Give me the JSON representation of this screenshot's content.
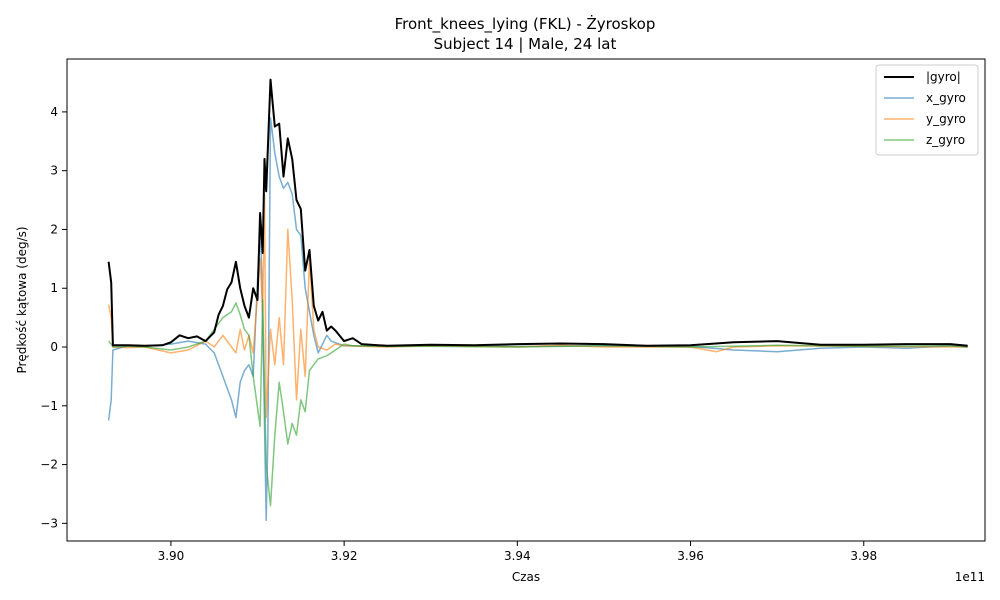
{
  "chart_data": {
    "type": "line",
    "title": "Front_knees_lying (FKL) - Żyroskop",
    "subtitle": "Subject 14 | Male, 24 lat",
    "xlabel": "Czas",
    "ylabel": "Prędkość kątowa (deg/s)",
    "x_offset_label": "1e11",
    "xlim": [
      3.888,
      3.994
    ],
    "ylim": [
      -3.3,
      4.9
    ],
    "x_ticks": [
      3.9,
      3.92,
      3.94,
      3.96,
      3.98
    ],
    "x_tick_labels": [
      "3.90",
      "3.92",
      "3.94",
      "3.96",
      "3.98"
    ],
    "y_ticks": [
      -3,
      -2,
      -1,
      0,
      1,
      2,
      3,
      4
    ],
    "y_tick_labels": [
      "−3",
      "−2",
      "−1",
      "0",
      "1",
      "2",
      "3",
      "4"
    ],
    "grid": false,
    "legend_position": "top-right",
    "series": [
      {
        "name": "|gyro|",
        "color": "#000000",
        "points": [
          [
            3.8928,
            1.45
          ],
          [
            3.8931,
            1.1
          ],
          [
            3.8933,
            0.03
          ],
          [
            3.895,
            0.03
          ],
          [
            3.897,
            0.02
          ],
          [
            3.899,
            0.03
          ],
          [
            3.9,
            0.08
          ],
          [
            3.901,
            0.2
          ],
          [
            3.902,
            0.15
          ],
          [
            3.903,
            0.18
          ],
          [
            3.904,
            0.1
          ],
          [
            3.905,
            0.25
          ],
          [
            3.9055,
            0.55
          ],
          [
            3.906,
            0.7
          ],
          [
            3.9065,
            0.98
          ],
          [
            3.907,
            1.1
          ],
          [
            3.9075,
            1.45
          ],
          [
            3.908,
            1.0
          ],
          [
            3.9085,
            0.7
          ],
          [
            3.909,
            0.5
          ],
          [
            3.9095,
            1.0
          ],
          [
            3.91,
            0.8
          ],
          [
            3.9103,
            2.28
          ],
          [
            3.9106,
            1.6
          ],
          [
            3.9108,
            3.2
          ],
          [
            3.911,
            2.65
          ],
          [
            3.9115,
            4.55
          ],
          [
            3.912,
            3.75
          ],
          [
            3.9125,
            3.8
          ],
          [
            3.913,
            2.9
          ],
          [
            3.9135,
            3.55
          ],
          [
            3.914,
            3.2
          ],
          [
            3.9145,
            2.5
          ],
          [
            3.915,
            2.35
          ],
          [
            3.9155,
            1.3
          ],
          [
            3.916,
            1.65
          ],
          [
            3.9165,
            0.7
          ],
          [
            3.917,
            0.45
          ],
          [
            3.9175,
            0.6
          ],
          [
            3.918,
            0.28
          ],
          [
            3.9185,
            0.35
          ],
          [
            3.919,
            0.28
          ],
          [
            3.92,
            0.1
          ],
          [
            3.921,
            0.15
          ],
          [
            3.922,
            0.05
          ],
          [
            3.925,
            0.02
          ],
          [
            3.93,
            0.04
          ],
          [
            3.935,
            0.03
          ],
          [
            3.94,
            0.05
          ],
          [
            3.945,
            0.06
          ],
          [
            3.95,
            0.05
          ],
          [
            3.955,
            0.02
          ],
          [
            3.96,
            0.03
          ],
          [
            3.965,
            0.08
          ],
          [
            3.97,
            0.1
          ],
          [
            3.975,
            0.04
          ],
          [
            3.98,
            0.04
          ],
          [
            3.985,
            0.05
          ],
          [
            3.99,
            0.05
          ],
          [
            3.992,
            0.02
          ]
        ]
      },
      {
        "name": "x_gyro",
        "color": "#1f77b4",
        "points": [
          [
            3.8928,
            -1.25
          ],
          [
            3.8931,
            -0.9
          ],
          [
            3.8933,
            -0.05
          ],
          [
            3.895,
            0.02
          ],
          [
            3.897,
            0.01
          ],
          [
            3.9,
            0.05
          ],
          [
            3.902,
            0.1
          ],
          [
            3.904,
            0.05
          ],
          [
            3.905,
            -0.1
          ],
          [
            3.906,
            -0.5
          ],
          [
            3.907,
            -0.9
          ],
          [
            3.9075,
            -1.2
          ],
          [
            3.908,
            -0.6
          ],
          [
            3.9085,
            -0.4
          ],
          [
            3.909,
            -0.3
          ],
          [
            3.9095,
            -0.5
          ],
          [
            3.9103,
            2.1
          ],
          [
            3.9105,
            1.2
          ],
          [
            3.911,
            -2.95
          ],
          [
            3.9112,
            -1.5
          ],
          [
            3.9115,
            3.9
          ],
          [
            3.912,
            3.3
          ],
          [
            3.9125,
            2.9
          ],
          [
            3.913,
            2.7
          ],
          [
            3.9135,
            2.8
          ],
          [
            3.914,
            2.6
          ],
          [
            3.9145,
            2.0
          ],
          [
            3.915,
            1.9
          ],
          [
            3.9155,
            1.0
          ],
          [
            3.916,
            0.6
          ],
          [
            3.9165,
            0.2
          ],
          [
            3.917,
            -0.1
          ],
          [
            3.9175,
            0.05
          ],
          [
            3.918,
            0.2
          ],
          [
            3.9185,
            0.1
          ],
          [
            3.92,
            0.02
          ],
          [
            3.925,
            0.01
          ],
          [
            3.93,
            0.02
          ],
          [
            3.94,
            0.01
          ],
          [
            3.95,
            0.02
          ],
          [
            3.96,
            0.01
          ],
          [
            3.965,
            -0.05
          ],
          [
            3.97,
            -0.08
          ],
          [
            3.975,
            -0.02
          ],
          [
            3.98,
            0.0
          ],
          [
            3.985,
            -0.02
          ],
          [
            3.99,
            0.02
          ],
          [
            3.992,
            0.0
          ]
        ]
      },
      {
        "name": "y_gyro",
        "color": "#ff7f0e",
        "points": [
          [
            3.8928,
            0.72
          ],
          [
            3.8931,
            0.5
          ],
          [
            3.8933,
            0.0
          ],
          [
            3.895,
            -0.01
          ],
          [
            3.897,
            0.0
          ],
          [
            3.9,
            -0.1
          ],
          [
            3.902,
            -0.05
          ],
          [
            3.904,
            0.1
          ],
          [
            3.905,
            0.0
          ],
          [
            3.906,
            0.2
          ],
          [
            3.907,
            0.0
          ],
          [
            3.9075,
            -0.1
          ],
          [
            3.908,
            0.3
          ],
          [
            3.9085,
            -0.05
          ],
          [
            3.909,
            0.2
          ],
          [
            3.9095,
            -0.1
          ],
          [
            3.9103,
            1.5
          ],
          [
            3.9106,
            0.6
          ],
          [
            3.9108,
            2.6
          ],
          [
            3.911,
            -1.2
          ],
          [
            3.9115,
            0.3
          ],
          [
            3.912,
            -0.3
          ],
          [
            3.9125,
            0.5
          ],
          [
            3.913,
            -0.3
          ],
          [
            3.9135,
            2.0
          ],
          [
            3.914,
            0.8
          ],
          [
            3.9145,
            -0.9
          ],
          [
            3.915,
            0.3
          ],
          [
            3.9155,
            -0.5
          ],
          [
            3.916,
            1.5
          ],
          [
            3.9165,
            0.3
          ],
          [
            3.917,
            0.0
          ],
          [
            3.918,
            -0.05
          ],
          [
            3.919,
            0.05
          ],
          [
            3.92,
            0.02
          ],
          [
            3.925,
            0.0
          ],
          [
            3.93,
            0.02
          ],
          [
            3.94,
            0.0
          ],
          [
            3.945,
            0.03
          ],
          [
            3.95,
            0.0
          ],
          [
            3.96,
            0.0
          ],
          [
            3.963,
            -0.08
          ],
          [
            3.965,
            0.0
          ],
          [
            3.97,
            0.02
          ],
          [
            3.98,
            0.01
          ],
          [
            3.99,
            0.0
          ],
          [
            3.992,
            0.0
          ]
        ]
      },
      {
        "name": "z_gyro",
        "color": "#2ca02c",
        "points": [
          [
            3.8928,
            0.1
          ],
          [
            3.8931,
            0.05
          ],
          [
            3.8933,
            0.0
          ],
          [
            3.895,
            0.01
          ],
          [
            3.897,
            0.0
          ],
          [
            3.9,
            -0.05
          ],
          [
            3.902,
            0.0
          ],
          [
            3.904,
            0.1
          ],
          [
            3.905,
            0.3
          ],
          [
            3.906,
            0.5
          ],
          [
            3.907,
            0.6
          ],
          [
            3.9075,
            0.75
          ],
          [
            3.908,
            0.55
          ],
          [
            3.9085,
            0.3
          ],
          [
            3.909,
            0.2
          ],
          [
            3.9095,
            -0.5
          ],
          [
            3.9103,
            -1.35
          ],
          [
            3.9106,
            0.8
          ],
          [
            3.911,
            -2.0
          ],
          [
            3.9115,
            -2.7
          ],
          [
            3.912,
            -1.5
          ],
          [
            3.9125,
            -0.6
          ],
          [
            3.913,
            -1.1
          ],
          [
            3.9135,
            -1.65
          ],
          [
            3.914,
            -1.3
          ],
          [
            3.9145,
            -1.5
          ],
          [
            3.915,
            -0.9
          ],
          [
            3.9155,
            -1.1
          ],
          [
            3.916,
            -0.4
          ],
          [
            3.9165,
            -0.3
          ],
          [
            3.917,
            -0.2
          ],
          [
            3.918,
            -0.15
          ],
          [
            3.919,
            -0.05
          ],
          [
            3.92,
            0.05
          ],
          [
            3.921,
            0.02
          ],
          [
            3.925,
            0.01
          ],
          [
            3.93,
            0.01
          ],
          [
            3.94,
            0.0
          ],
          [
            3.95,
            0.02
          ],
          [
            3.96,
            0.0
          ],
          [
            3.97,
            0.03
          ],
          [
            3.98,
            0.01
          ],
          [
            3.99,
            0.02
          ],
          [
            3.992,
            0.0
          ]
        ]
      }
    ]
  }
}
